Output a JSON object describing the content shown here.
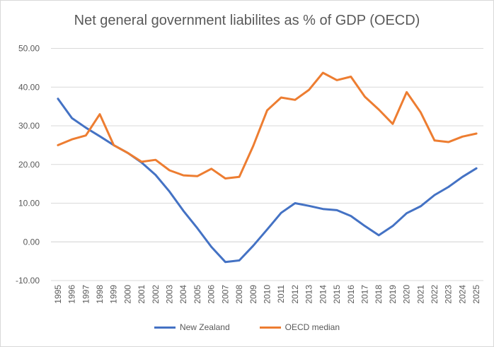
{
  "chart_data": {
    "type": "line",
    "title": "Net general government liabilites as % of GDP (OECD)",
    "xlabel": "",
    "ylabel": "",
    "x": [
      "1995",
      "1996",
      "1997",
      "1998",
      "1999",
      "2000",
      "2001",
      "2002",
      "2003",
      "2004",
      "2005",
      "2006",
      "2007",
      "2008",
      "2009",
      "2010",
      "2011",
      "2012",
      "2013",
      "2014",
      "2015",
      "2016",
      "2017",
      "2018",
      "2019",
      "2020",
      "2021",
      "2022",
      "2023",
      "2024",
      "2025"
    ],
    "ylim": [
      -10,
      50
    ],
    "yticks": [
      "-10.00",
      "0.00",
      "10.00",
      "20.00",
      "30.00",
      "40.00",
      "50.00"
    ],
    "grid": "horizontal",
    "legend_position": "bottom",
    "series": [
      {
        "name": "New Zealand",
        "color": "#4472c4",
        "values": [
          37.0,
          32.0,
          29.5,
          27.3,
          25.0,
          23.0,
          20.5,
          17.3,
          13.0,
          8.0,
          3.5,
          -1.3,
          -5.2,
          -4.8,
          -1.0,
          3.2,
          7.5,
          10.0,
          9.3,
          8.5,
          8.2,
          6.7,
          4.1,
          1.7,
          4.1,
          7.4,
          9.2,
          12.1,
          14.2,
          16.8,
          19.0
        ]
      },
      {
        "name": "OECD median",
        "color": "#ed7d31",
        "values": [
          25.0,
          26.5,
          27.5,
          33.0,
          25.0,
          23.0,
          20.7,
          21.2,
          18.5,
          17.2,
          17.0,
          18.9,
          16.4,
          16.8,
          24.8,
          34.0,
          37.3,
          36.7,
          39.3,
          43.7,
          41.8,
          42.7,
          37.5,
          34.2,
          30.5,
          38.7,
          33.5,
          26.2,
          25.8,
          27.2,
          28.0
        ]
      }
    ]
  }
}
